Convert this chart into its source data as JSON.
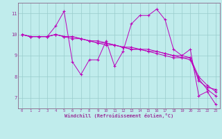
{
  "xlabel": "Windchill (Refroidissement éolien,°C)",
  "background_color": "#c0ecec",
  "line_color": "#bb00bb",
  "grid_color": "#99cccc",
  "axis_color": "#993399",
  "spine_color": "#886688",
  "xlim": [
    -0.5,
    23.5
  ],
  "ylim": [
    6.5,
    11.5
  ],
  "yticks": [
    7,
    8,
    9,
    10,
    11
  ],
  "xticks": [
    0,
    1,
    2,
    3,
    4,
    5,
    6,
    7,
    8,
    9,
    10,
    11,
    12,
    13,
    14,
    15,
    16,
    17,
    18,
    19,
    20,
    21,
    22,
    23
  ],
  "series": [
    {
      "x": [
        0,
        1,
        2,
        3,
        4,
        5,
        6,
        7,
        8,
        9,
        10,
        11,
        12,
        13,
        14,
        15,
        16,
        17,
        18,
        19,
        20,
        21,
        22,
        23
      ],
      "y": [
        10.0,
        9.9,
        9.9,
        9.9,
        10.4,
        11.1,
        8.7,
        8.1,
        8.8,
        8.8,
        9.7,
        8.5,
        9.2,
        10.5,
        10.9,
        10.9,
        11.2,
        10.7,
        9.3,
        9.0,
        9.3,
        7.1,
        7.3,
        6.7
      ]
    },
    {
      "x": [
        0,
        1,
        2,
        3,
        4,
        5,
        6,
        7,
        8,
        9,
        10,
        11,
        12,
        13,
        14,
        15,
        16,
        17,
        18,
        19,
        20,
        21,
        22,
        23
      ],
      "y": [
        10.0,
        9.9,
        9.9,
        9.9,
        10.0,
        9.9,
        9.8,
        9.8,
        9.7,
        9.6,
        9.6,
        9.5,
        9.4,
        9.4,
        9.3,
        9.3,
        9.2,
        9.1,
        9.0,
        9.0,
        8.9,
        7.8,
        7.5,
        7.4
      ]
    },
    {
      "x": [
        0,
        1,
        2,
        3,
        4,
        5,
        6,
        7,
        8,
        9,
        10,
        11,
        12,
        13,
        14,
        15,
        16,
        17,
        18,
        19,
        20,
        21,
        22,
        23
      ],
      "y": [
        10.0,
        9.9,
        9.9,
        9.9,
        10.0,
        9.9,
        9.9,
        9.8,
        9.7,
        9.7,
        9.6,
        9.5,
        9.4,
        9.3,
        9.3,
        9.2,
        9.2,
        9.1,
        9.0,
        8.9,
        8.9,
        8.0,
        7.6,
        7.3
      ]
    },
    {
      "x": [
        0,
        1,
        2,
        3,
        4,
        5,
        6,
        7,
        8,
        9,
        10,
        11,
        12,
        13,
        14,
        15,
        16,
        17,
        18,
        19,
        20,
        21,
        22,
        23
      ],
      "y": [
        10.0,
        9.9,
        9.9,
        9.9,
        10.0,
        9.9,
        9.9,
        9.8,
        9.7,
        9.6,
        9.5,
        9.5,
        9.4,
        9.3,
        9.3,
        9.2,
        9.1,
        9.0,
        8.9,
        8.9,
        8.8,
        7.9,
        7.4,
        7.1
      ]
    }
  ]
}
